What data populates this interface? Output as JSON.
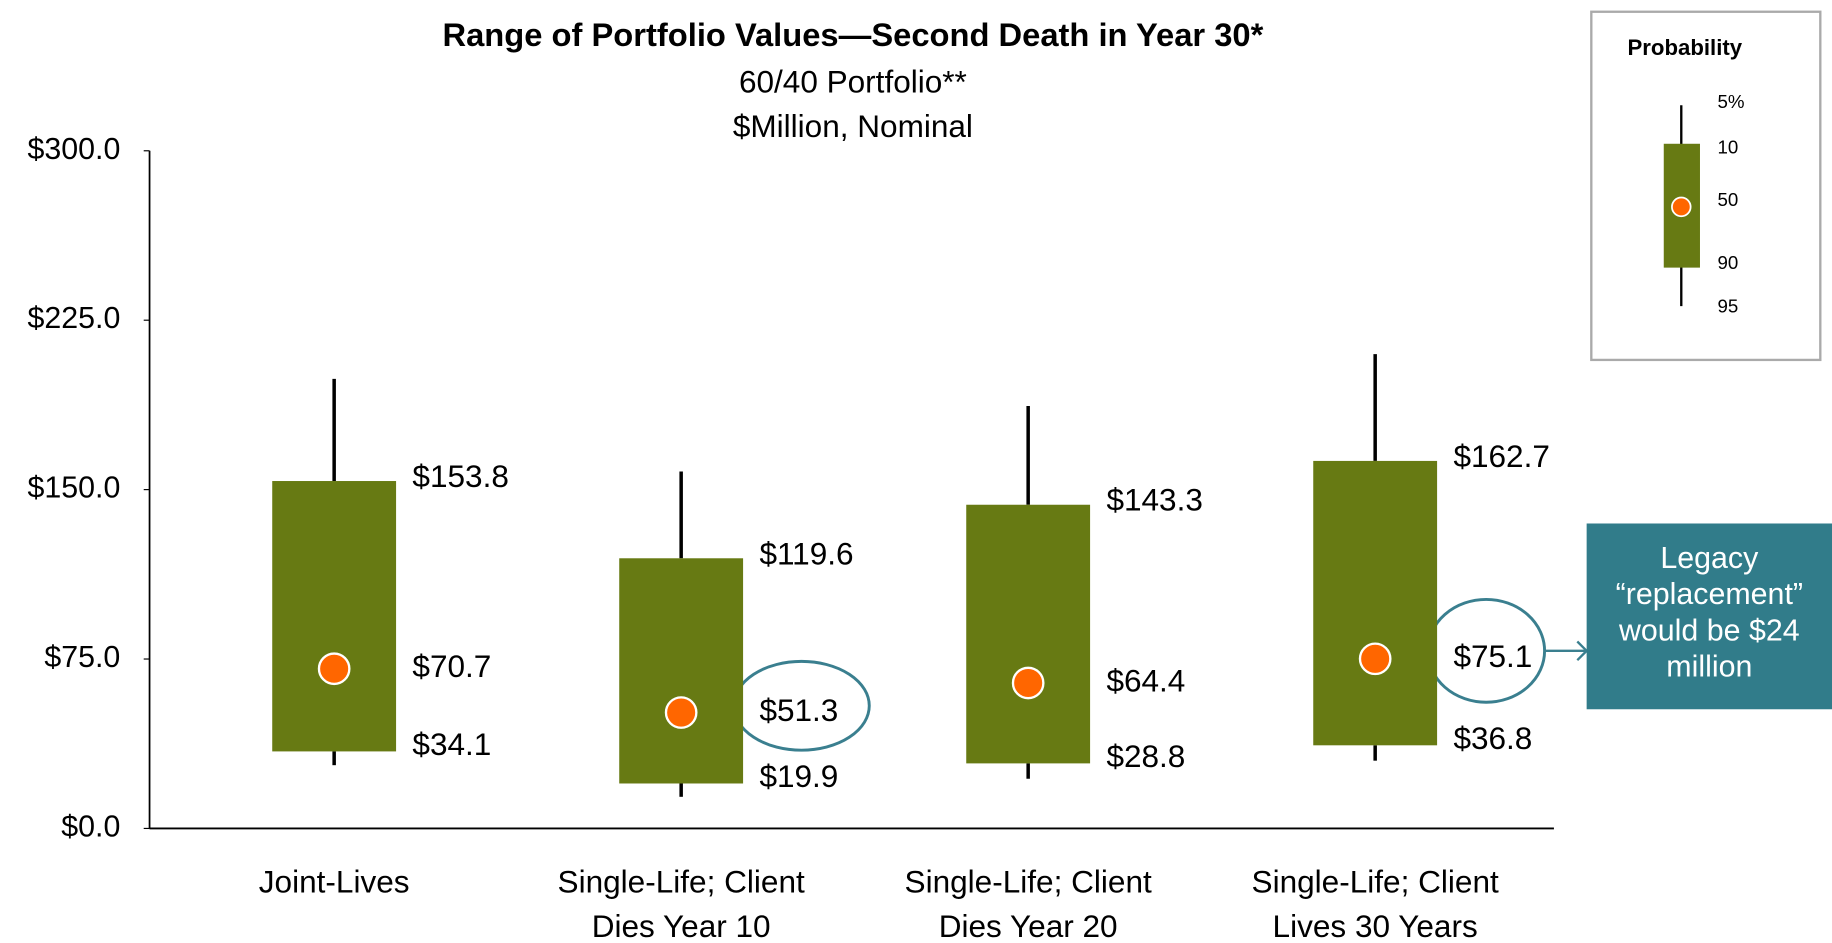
{
  "chart_data": {
    "type": "box",
    "title": "Range of Portfolio Values—Second Death in Year 30*",
    "subtitle": [
      "60/40 Portfolio**",
      "$Million, Nominal"
    ],
    "categories": [
      "Joint-Lives",
      "Single-Life; Client Dies Year 10",
      "Single-Life; Client Dies Year 20",
      "Single-Life; Client Lives 30 Years"
    ],
    "p5": {
      "values": [
        199,
        158,
        187,
        210
      ]
    },
    "p10": {
      "values": [
        153.8,
        119.6,
        143.3,
        162.7
      ],
      "value_labels": [
        "$153.8",
        "$119.6",
        "$143.3",
        "$162.7"
      ]
    },
    "p50": {
      "values": [
        70.7,
        51.3,
        64.4,
        75.1
      ],
      "value_labels": [
        "$70.7",
        "$51.3",
        "$64.4",
        "$75.1"
      ]
    },
    "p90": {
      "values": [
        34.1,
        19.9,
        28.8,
        36.8
      ],
      "value_labels": [
        "$34.1",
        "$19.9",
        "$28.8",
        "$36.8"
      ]
    },
    "p95": {
      "values": [
        28,
        14,
        22,
        30
      ]
    },
    "box_color": "#677a13",
    "median_color": "#ff6600",
    "ylim": [
      0,
      300
    ],
    "yticks": [
      {
        "value": 0,
        "label": "$0.0"
      },
      {
        "value": 75,
        "label": "$75.0"
      },
      {
        "value": 150,
        "label": "$150.0"
      },
      {
        "value": 225,
        "label": "$225.0"
      },
      {
        "value": 300,
        "label": "$300.0"
      }
    ],
    "legend": {
      "title": "Probability",
      "labels": [
        "5%",
        "10",
        "50",
        "90",
        "95"
      ]
    },
    "annotation": "Legacy “replacement” would be $24 million"
  }
}
